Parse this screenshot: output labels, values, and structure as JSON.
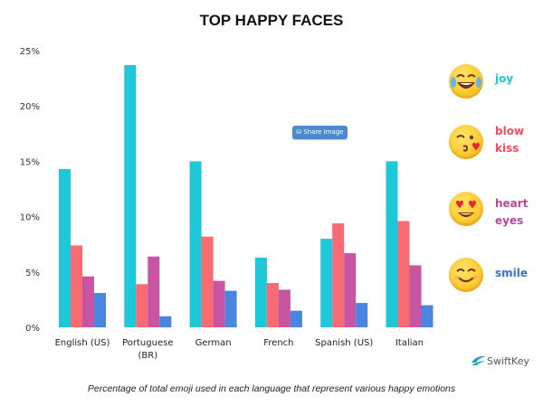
{
  "chart_data": {
    "type": "bar",
    "title": "TOP HAPPY FACES",
    "caption": "Percentage of total emoji used in each language that represent various happy emotions",
    "categories": [
      [
        "English (US)"
      ],
      [
        "Portuguese",
        "(BR)"
      ],
      [
        "German"
      ],
      [
        "French"
      ],
      [
        "Spanish (US)"
      ],
      [
        "Italian"
      ]
    ],
    "series": [
      {
        "name": "joy",
        "color": "#1ec8d8",
        "values": [
          14.3,
          23.7,
          15.0,
          6.3,
          8.0,
          15.0
        ]
      },
      {
        "name": "blow kiss",
        "color": "#f76b73",
        "values": [
          7.4,
          3.9,
          8.2,
          4.0,
          9.4,
          9.6
        ]
      },
      {
        "name": "heart eyes",
        "color": "#c855a4",
        "values": [
          4.6,
          6.4,
          4.2,
          3.4,
          6.7,
          5.6
        ]
      },
      {
        "name": "smile",
        "color": "#4a86e0",
        "values": [
          3.1,
          1.0,
          3.3,
          1.5,
          2.2,
          2.0
        ]
      }
    ],
    "yticks": [
      "0%",
      "5%",
      "10%",
      "15%",
      "20%",
      "25%"
    ],
    "ylim": [
      0,
      25
    ],
    "legend_position": "right"
  },
  "legend": [
    {
      "label": [
        "joy"
      ],
      "color": "#1ec8d8",
      "icon": "tears-of-joy-emoji-icon"
    },
    {
      "label": [
        "blow",
        "kiss"
      ],
      "color": "#f04e5a",
      "icon": "blow-kiss-emoji-icon"
    },
    {
      "label": [
        "heart",
        "eyes"
      ],
      "color": "#b8489a",
      "icon": "heart-eyes-emoji-icon"
    },
    {
      "label": [
        "smile"
      ],
      "color": "#3b6fd4",
      "icon": "smile-emoji-icon"
    }
  ],
  "ui": {
    "share_label": "Share Image",
    "share_icon": "share-icon"
  },
  "brand": {
    "name": "SwiftKey",
    "icon": "swiftkey-logo-icon"
  }
}
